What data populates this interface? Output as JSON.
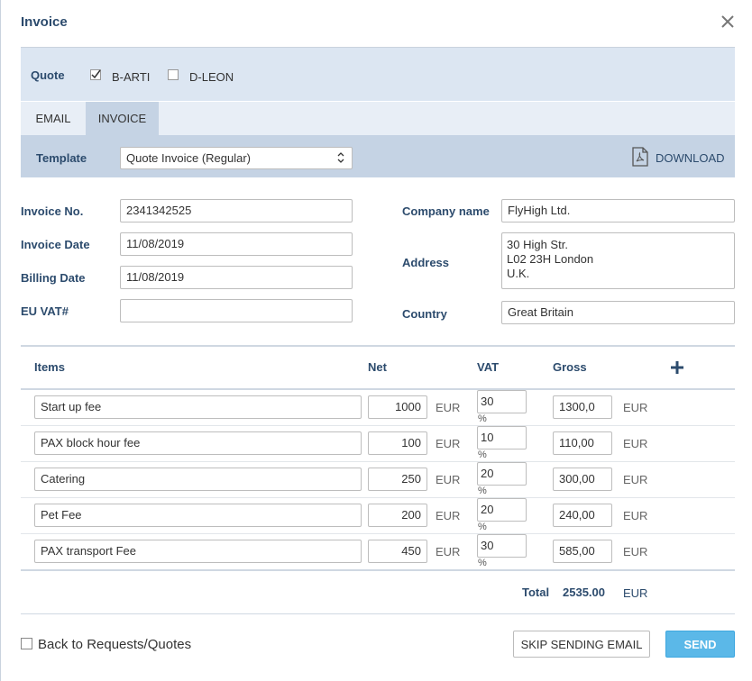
{
  "title": "Invoice",
  "quote": {
    "label": "Quote",
    "options": [
      {
        "label": "B-ARTI",
        "checked": true
      },
      {
        "label": "D-LEON",
        "checked": false
      }
    ]
  },
  "tabs": [
    {
      "label": "EMAIL",
      "active": false
    },
    {
      "label": "INVOICE",
      "active": true
    }
  ],
  "template": {
    "label": "Template",
    "value": "Quote Invoice (Regular)",
    "download": "DOWNLOAD"
  },
  "fields_left": [
    {
      "label": "Invoice No.",
      "value": "2341342525"
    },
    {
      "label": "Invoice Date",
      "value": "11/08/2019"
    },
    {
      "label": "Billing Date",
      "value": "11/08/2019"
    },
    {
      "label": "EU VAT#"
    }
  ],
  "fields_right": {
    "company": {
      "label": "Company name",
      "value": "FlyHigh Ltd."
    },
    "address": {
      "label": "Address",
      "lines": [
        "30 High Str.",
        "L02 23H London",
        "U.K."
      ]
    },
    "country": {
      "label": "Country",
      "value": "Great Britain"
    }
  },
  "items": {
    "headers": [
      "Items",
      "Net",
      "VAT",
      "Gross"
    ],
    "currency": "EUR",
    "vat_unit": "%",
    "rows": [
      {
        "name": "Start up fee",
        "net": 1000,
        "vat": 30,
        "gross": "1300,0"
      },
      {
        "name": "PAX block hour fee",
        "net": 100,
        "vat": 10,
        "gross": "110,00"
      },
      {
        "name": "Catering",
        "net": 250,
        "vat": 20,
        "gross": "300,00"
      },
      {
        "name": "Pet Fee",
        "net": 200,
        "vat": 20,
        "gross": "240,00"
      },
      {
        "name": "PAX transport Fee",
        "net": 450,
        "vat": 30,
        "gross": "585,00"
      }
    ]
  },
  "total": {
    "label": "Total",
    "value": "2535.00"
  },
  "footer": {
    "back": "Back to Requests/Quotes",
    "skip": "SKIP SENDING EMAIL",
    "send": "SEND"
  }
}
